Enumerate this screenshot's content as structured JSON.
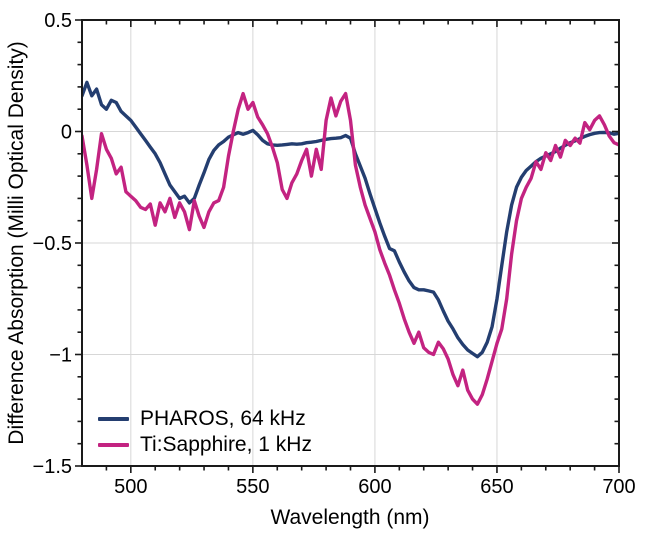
{
  "chart_data": {
    "type": "line",
    "title": "",
    "xlabel": "Wavelength (nm)",
    "ylabel": "Difference Absorption (Milli Optical Density)",
    "xlim": [
      480,
      700
    ],
    "ylim": [
      -1.5,
      0.5
    ],
    "grid": true,
    "grid_color": "#d7d7d7",
    "axis_color": "#1a1a1a",
    "x_ticks": [
      500,
      550,
      600,
      650,
      700
    ],
    "x_tick_labels": [
      "500",
      "550",
      "600",
      "650",
      "700"
    ],
    "x_minor_step": 10,
    "y_ticks": [
      0.5,
      0,
      -0.5,
      -1,
      -1.5
    ],
    "y_tick_labels": [
      "0.5",
      "0",
      "−0.5",
      "−1",
      "−1.5"
    ],
    "y_minor_step": 0.1,
    "legend_position": "lower-left",
    "x_start": 480,
    "x_step": 2,
    "series": [
      {
        "name": "PHAROS, 64 kHz",
        "color": "#243e70",
        "values": [
          0.16,
          0.22,
          0.16,
          0.19,
          0.12,
          0.1,
          0.14,
          0.13,
          0.09,
          0.07,
          0.05,
          0.02,
          -0.01,
          -0.04,
          -0.07,
          -0.1,
          -0.14,
          -0.19,
          -0.24,
          -0.27,
          -0.3,
          -0.29,
          -0.32,
          -0.3,
          -0.24,
          -0.185,
          -0.125,
          -0.085,
          -0.06,
          -0.045,
          -0.025,
          -0.015,
          -0.005,
          -0.012,
          -0.005,
          0.005,
          -0.015,
          -0.04,
          -0.055,
          -0.06,
          -0.062,
          -0.06,
          -0.058,
          -0.055,
          -0.057,
          -0.055,
          -0.05,
          -0.048,
          -0.045,
          -0.04,
          -0.035,
          -0.032,
          -0.03,
          -0.028,
          -0.018,
          -0.03,
          -0.1,
          -0.155,
          -0.21,
          -0.28,
          -0.345,
          -0.41,
          -0.47,
          -0.525,
          -0.535,
          -0.585,
          -0.63,
          -0.67,
          -0.7,
          -0.71,
          -0.71,
          -0.715,
          -0.72,
          -0.755,
          -0.805,
          -0.85,
          -0.885,
          -0.925,
          -0.955,
          -0.98,
          -0.995,
          -1.01,
          -0.99,
          -0.945,
          -0.875,
          -0.75,
          -0.6,
          -0.45,
          -0.33,
          -0.25,
          -0.205,
          -0.175,
          -0.155,
          -0.135,
          -0.12,
          -0.11,
          -0.1,
          -0.09,
          -0.075,
          -0.062,
          -0.05,
          -0.042,
          -0.032,
          -0.022,
          -0.014,
          -0.008,
          -0.005,
          -0.004,
          -0.006,
          -0.012,
          -0.008
        ]
      },
      {
        "name": "Ti:Sapphire, 1 kHz",
        "color": "#c32381",
        "values": [
          -0.02,
          -0.15,
          -0.3,
          -0.17,
          -0.01,
          -0.08,
          -0.12,
          -0.19,
          -0.16,
          -0.27,
          -0.29,
          -0.31,
          -0.34,
          -0.35,
          -0.325,
          -0.42,
          -0.32,
          -0.36,
          -0.3,
          -0.385,
          -0.32,
          -0.36,
          -0.44,
          -0.31,
          -0.38,
          -0.43,
          -0.36,
          -0.32,
          -0.31,
          -0.25,
          -0.11,
          0.0,
          0.1,
          0.17,
          0.1,
          0.13,
          0.065,
          0.03,
          -0.01,
          -0.07,
          -0.14,
          -0.26,
          -0.3,
          -0.23,
          -0.19,
          -0.13,
          -0.08,
          -0.2,
          -0.08,
          -0.17,
          0.05,
          0.15,
          0.07,
          0.135,
          0.17,
          0.05,
          -0.15,
          -0.25,
          -0.33,
          -0.39,
          -0.45,
          -0.53,
          -0.59,
          -0.645,
          -0.71,
          -0.77,
          -0.84,
          -0.9,
          -0.95,
          -0.9,
          -0.97,
          -0.99,
          -1.0,
          -0.945,
          -0.975,
          -1.02,
          -1.09,
          -1.14,
          -1.07,
          -1.16,
          -1.2,
          -1.223,
          -1.18,
          -1.11,
          -1.03,
          -0.95,
          -0.885,
          -0.75,
          -0.55,
          -0.4,
          -0.3,
          -0.25,
          -0.21,
          -0.135,
          -0.17,
          -0.095,
          -0.13,
          -0.063,
          -0.115,
          -0.04,
          -0.063,
          -0.03,
          -0.052,
          0.04,
          0.008,
          0.05,
          0.07,
          0.03,
          -0.02,
          -0.05,
          -0.06
        ]
      }
    ]
  },
  "legend": {
    "items": [
      {
        "label": "PHAROS, 64 kHz"
      },
      {
        "label": "Ti:Sapphire, 1 kHz"
      }
    ]
  }
}
